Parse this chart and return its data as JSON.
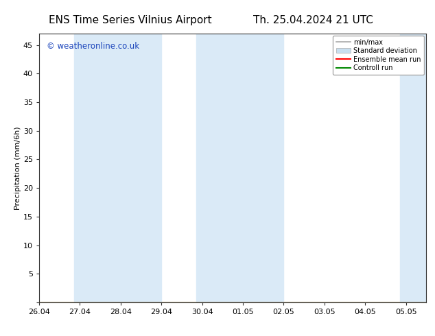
{
  "title_left": "ENS Time Series Vilnius Airport",
  "title_right": "Th. 25.04.2024 21 UTC",
  "ylabel": "Precipitation (mm/6h)",
  "xlabel_ticks": [
    "26.04",
    "27.04",
    "28.04",
    "29.04",
    "30.04",
    "01.05",
    "02.05",
    "03.05",
    "04.05",
    "05.05"
  ],
  "ylim": [
    0,
    47
  ],
  "yticks": [
    0,
    5,
    10,
    15,
    20,
    25,
    30,
    35,
    40,
    45
  ],
  "bg_color": "#ffffff",
  "plot_bg_color": "#ffffff",
  "shaded_band_color": "#daeaf7",
  "watermark_text": "© weatheronline.co.uk",
  "watermark_color": "#1a44bb",
  "legend_labels": [
    "min/max",
    "Standard deviation",
    "Ensemble mean run",
    "Controll run"
  ],
  "minmax_color": "#aaaaaa",
  "stddev_color": "#c8dff0",
  "ensemble_color": "#ff0000",
  "control_color": "#008800",
  "title_fontsize": 11,
  "axis_fontsize": 8,
  "tick_fontsize": 8
}
